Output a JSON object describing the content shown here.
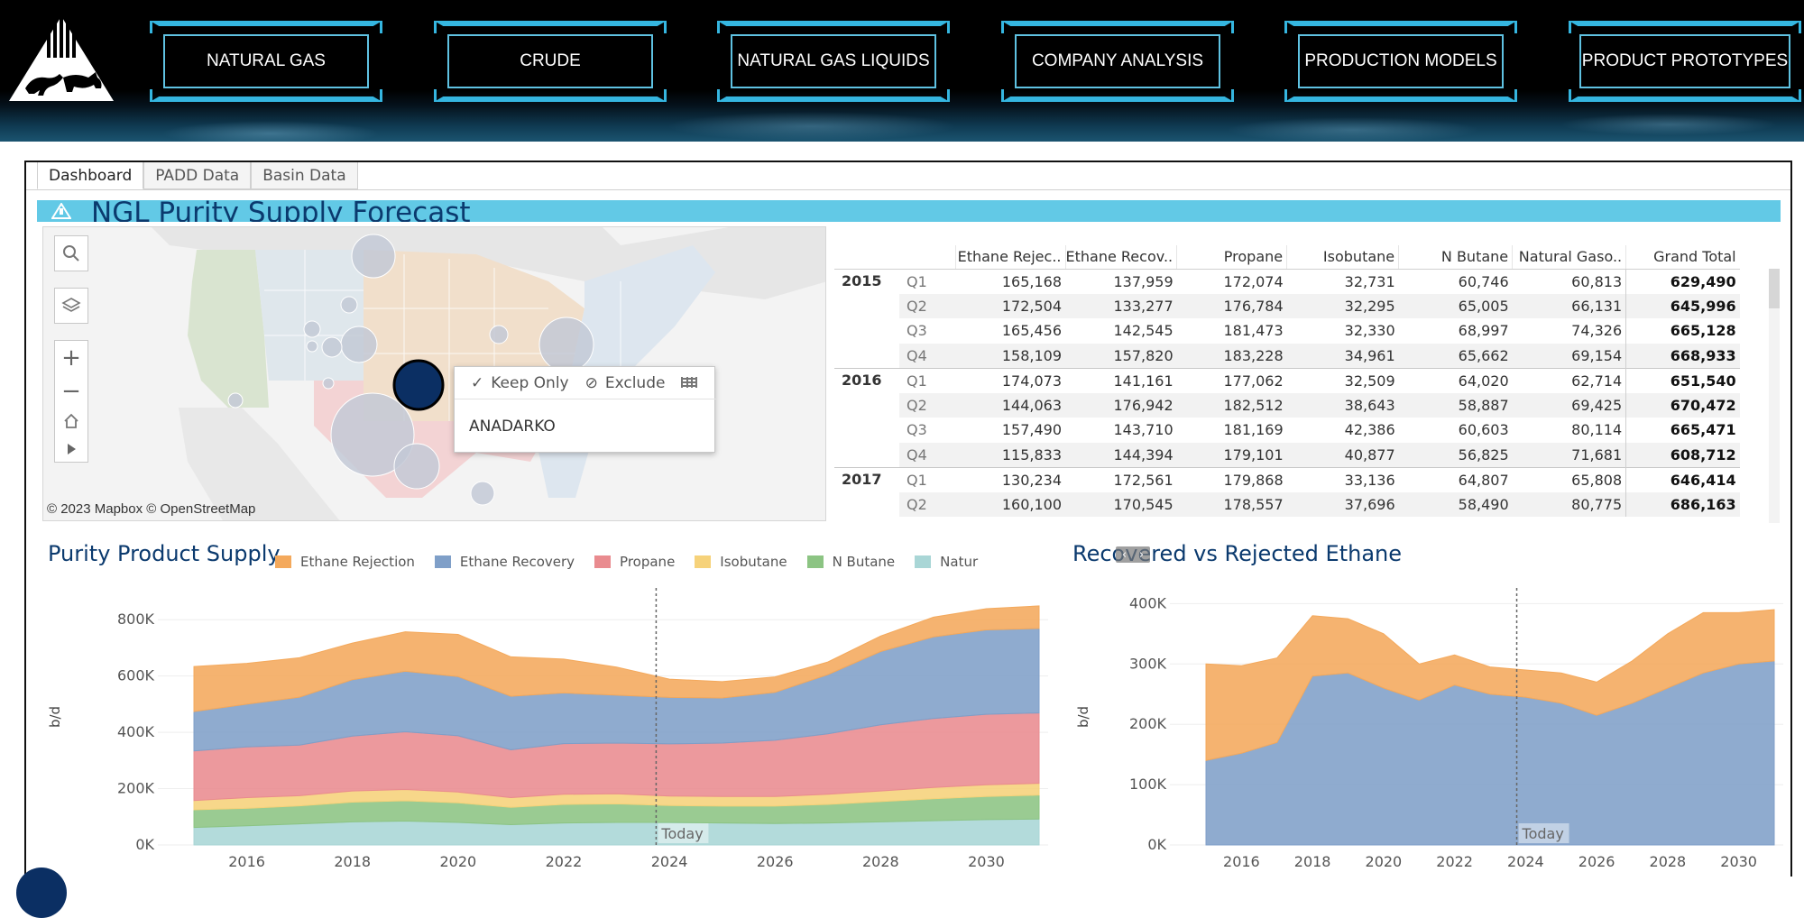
{
  "nav": {
    "items": [
      "NATURAL GAS",
      "CRUDE",
      "NATURAL GAS LIQUIDS",
      "COMPANY ANALYSIS",
      "PRODUCTION MODELS",
      "PRODUCT PROTOTYPES"
    ]
  },
  "tabs": [
    "Dashboard",
    "PADD Data",
    "Basin Data"
  ],
  "dashboard_title": "NGL Purity Supply Forecast",
  "map": {
    "attribution": "© 2023 Mapbox  © OpenStreetMap",
    "controls": [
      "search-icon",
      "layers-icon",
      "zoom-in-icon",
      "zoom-out-icon",
      "home-icon",
      "play-icon"
    ],
    "tooltip": {
      "keep_only": "Keep Only",
      "exclude": "Exclude",
      "selected_name": "ANADARKO"
    },
    "colors": {
      "selected_marker": "#0b2f63",
      "bubble": "#c3c9d6"
    }
  },
  "table": {
    "columns": [
      "Ethane Rejec..",
      "Ethane Recov..",
      "Propane",
      "Isobutane",
      "N Butane",
      "Natural Gaso..",
      "Grand Total"
    ],
    "rows": [
      {
        "year": "2015",
        "q": "Q1",
        "values": [
          "165,168",
          "137,959",
          "172,074",
          "32,731",
          "60,746",
          "60,813",
          "629,490"
        ]
      },
      {
        "year": "",
        "q": "Q2",
        "values": [
          "172,504",
          "133,277",
          "176,784",
          "32,295",
          "65,005",
          "66,131",
          "645,996"
        ]
      },
      {
        "year": "",
        "q": "Q3",
        "values": [
          "165,456",
          "142,545",
          "181,473",
          "32,330",
          "68,997",
          "74,326",
          "665,128"
        ]
      },
      {
        "year": "",
        "q": "Q4",
        "values": [
          "158,109",
          "157,820",
          "183,228",
          "34,961",
          "65,662",
          "69,154",
          "668,933"
        ]
      },
      {
        "year": "2016",
        "q": "Q1",
        "values": [
          "174,073",
          "141,161",
          "177,062",
          "32,509",
          "64,020",
          "62,714",
          "651,540"
        ]
      },
      {
        "year": "",
        "q": "Q2",
        "values": [
          "144,063",
          "176,942",
          "182,512",
          "38,643",
          "58,887",
          "69,425",
          "670,472"
        ]
      },
      {
        "year": "",
        "q": "Q3",
        "values": [
          "157,490",
          "143,710",
          "181,169",
          "42,386",
          "60,603",
          "80,114",
          "665,471"
        ]
      },
      {
        "year": "",
        "q": "Q4",
        "values": [
          "115,833",
          "144,394",
          "179,101",
          "40,877",
          "56,825",
          "71,681",
          "608,712"
        ]
      },
      {
        "year": "2017",
        "q": "Q1",
        "values": [
          "130,234",
          "172,561",
          "179,868",
          "33,136",
          "64,807",
          "65,808",
          "646,414"
        ]
      },
      {
        "year": "",
        "q": "Q2",
        "values": [
          "160,100",
          "170,545",
          "178,557",
          "37,696",
          "58,490",
          "80,775",
          "686,163"
        ]
      }
    ]
  },
  "chart_data": [
    {
      "type": "area",
      "title": "Purity Product Supply",
      "ylabel": "b/d",
      "ylim": [
        0,
        900000
      ],
      "yticks": [
        "800K",
        "600K",
        "400K",
        "200K",
        "0K"
      ],
      "xticks": [
        "2016",
        "2018",
        "2020",
        "2022",
        "2024",
        "2026",
        "2028",
        "2030"
      ],
      "annotation": "Today",
      "legend": [
        "Ethane Rejection",
        "Ethane Recovery",
        "Propane",
        "Isobutane",
        "N Butane",
        "Natural Gasoline"
      ],
      "legend_visible": [
        "Ethane Rejection",
        "Ethane Recovery",
        "Propane",
        "Isobutane",
        "N Butane",
        "Natur"
      ],
      "colors": [
        "#f4a95c",
        "#7f9fc8",
        "#e98b8f",
        "#f6d27a",
        "#8cc483",
        "#a9d6d6"
      ],
      "x": [
        2015.0,
        2016.0,
        2017.0,
        2018.0,
        2019.0,
        2020.0,
        2021.0,
        2022.0,
        2023.0,
        2024.0,
        2025.0,
        2026.0,
        2027.0,
        2028.0,
        2029.0,
        2030.0,
        2031.0
      ],
      "series": [
        {
          "name": "Natural Gasoline",
          "values": [
            62000,
            68000,
            75000,
            82000,
            85000,
            80000,
            72000,
            78000,
            80000,
            80000,
            78000,
            76000,
            78000,
            82000,
            86000,
            90000,
            92000
          ]
        },
        {
          "name": "N Butane",
          "values": [
            63000,
            62000,
            64000,
            70000,
            72000,
            70000,
            62000,
            66000,
            66000,
            60000,
            60000,
            62000,
            66000,
            72000,
            78000,
            82000,
            85000
          ]
        },
        {
          "name": "Isobutane",
          "values": [
            33000,
            38000,
            36000,
            40000,
            40000,
            38000,
            34000,
            36000,
            36000,
            34000,
            34000,
            34000,
            36000,
            38000,
            40000,
            42000,
            42000
          ]
        },
        {
          "name": "Propane",
          "values": [
            176000,
            180000,
            180000,
            195000,
            205000,
            200000,
            170000,
            180000,
            180000,
            185000,
            190000,
            200000,
            215000,
            235000,
            245000,
            250000,
            250000
          ]
        },
        {
          "name": "Ethane Recovery",
          "values": [
            140000,
            152000,
            170000,
            200000,
            215000,
            210000,
            190000,
            180000,
            170000,
            165000,
            160000,
            170000,
            210000,
            260000,
            290000,
            300000,
            300000
          ]
        },
        {
          "name": "Ethane Rejection",
          "values": [
            160000,
            145000,
            140000,
            130000,
            140000,
            150000,
            140000,
            120000,
            100000,
            65000,
            58000,
            55000,
            45000,
            55000,
            70000,
            75000,
            80000
          ]
        }
      ]
    },
    {
      "type": "area",
      "title": "Recovered vs Rejected Ethane",
      "ylabel": "b/d",
      "ylim": [
        0,
        420000
      ],
      "yticks": [
        "400K",
        "300K",
        "200K",
        "100K",
        "0K"
      ],
      "xticks": [
        "2016",
        "2018",
        "2020",
        "2022",
        "2024",
        "2026",
        "2028",
        "2030"
      ],
      "annotation": "Today",
      "colors": [
        "#7f9fc8",
        "#f4a95c"
      ],
      "x": [
        2015.0,
        2016.0,
        2017.0,
        2018.0,
        2019.0,
        2020.0,
        2021.0,
        2022.0,
        2023.0,
        2024.0,
        2025.0,
        2026.0,
        2027.0,
        2028.0,
        2029.0,
        2030.0,
        2031.0
      ],
      "series": [
        {
          "name": "Ethane Recovery",
          "values": [
            140000,
            152000,
            170000,
            280000,
            285000,
            260000,
            240000,
            265000,
            250000,
            245000,
            235000,
            215000,
            235000,
            260000,
            285000,
            300000,
            305000
          ]
        },
        {
          "name": "Ethane Rejection",
          "values": [
            160000,
            145000,
            140000,
            100000,
            90000,
            90000,
            60000,
            50000,
            45000,
            45000,
            50000,
            55000,
            70000,
            90000,
            100000,
            85000,
            85000
          ]
        }
      ]
    }
  ]
}
